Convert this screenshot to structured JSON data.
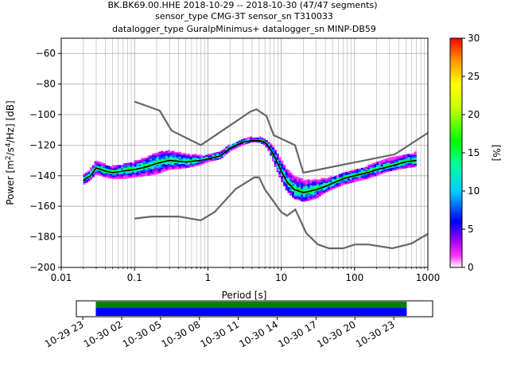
{
  "header": {
    "line1": "BK.BK69.00.HHE   2018-10-29 -- 2018-10-30  (47/47 segments)",
    "line2": "sensor_type CMG-3T sensor_sn T310033",
    "line3": "datalogger_type GuralpMinimus+ datalogger_sn MINP-DB59"
  },
  "colorbar": {
    "label": "[%]",
    "ticks": [
      "0",
      "5",
      "10",
      "15",
      "20",
      "25",
      "30"
    ],
    "range": [
      0,
      30
    ]
  },
  "timeline": {
    "tick_labels": [
      "10-29 23",
      "10-30 02",
      "10-30 05",
      "10-30 08",
      "10-30 11",
      "10-30 14",
      "10-30 17",
      "10-30 20",
      "10-30 23"
    ],
    "range_hours": [
      -1.5,
      26.0
    ],
    "data_span_hours": [
      0,
      24
    ],
    "colors": {
      "coverage": "#008000",
      "gaps_free": "#0000ff"
    }
  },
  "chart_data": {
    "type": "heatmap",
    "title": "BK.BK69.00.HHE   2018-10-29 -- 2018-10-30  (47/47 segments)",
    "xlabel": "Period [s]",
    "ylabel": "Power [m²/s⁴/Hz] [dB]",
    "xscale": "log",
    "xlim": [
      0.01,
      1000
    ],
    "ylim": [
      -200,
      -50
    ],
    "x_tick_labels": [
      "0.01",
      "0.1",
      "1",
      "10",
      "100",
      "1000"
    ],
    "y_ticks": [
      -60,
      -80,
      -100,
      -120,
      -140,
      -160,
      -180,
      -200
    ],
    "y_tick_labels": [
      "−60",
      "−80",
      "−100",
      "−120",
      "−140",
      "−160",
      "−180",
      "−200"
    ],
    "grid": true,
    "noise_models": {
      "color": "#666666",
      "high": {
        "x": [
          0.1,
          0.22,
          0.32,
          0.8,
          3.8,
          4.6,
          6.3,
          7.9,
          15.4,
          20,
          354.8,
          1000
        ],
        "y": [
          -91.5,
          -97.4,
          -110.5,
          -120,
          -98,
          -96.5,
          -101,
          -113.5,
          -120,
          -138,
          -126,
          -112
        ]
      },
      "low": {
        "x": [
          0.1,
          0.17,
          0.4,
          0.8,
          1.24,
          2.4,
          4.3,
          5,
          6,
          10,
          12,
          15.6,
          21.9,
          31.6,
          45,
          70,
          101,
          154,
          328,
          600,
          1000
        ],
        "y": [
          -168,
          -166.7,
          -166.7,
          -169.2,
          -163.7,
          -148.6,
          -141.1,
          -141.1,
          -149,
          -163.8,
          -166.2,
          -162.1,
          -177.5,
          -185,
          -187.5,
          -187.5,
          -185,
          -185,
          -187.5,
          -184.4,
          -178
        ]
      }
    },
    "series": [
      {
        "name": "",
        "color": "#000000",
        "x": [
          0.02,
          0.025,
          0.03,
          0.04,
          0.05,
          0.07,
          0.1,
          0.15,
          0.2,
          0.3,
          0.5,
          0.8,
          1,
          1.5,
          2,
          3,
          4,
          5,
          6,
          7,
          8,
          10,
          12,
          15,
          20,
          25,
          30,
          40,
          50,
          70,
          100,
          150,
          200,
          300,
          500,
          700
        ],
        "y": [
          -143,
          -140,
          -135,
          -137,
          -138,
          -137,
          -136,
          -134,
          -132,
          -130,
          -131,
          -130,
          -129,
          -127,
          -122,
          -118,
          -117,
          -117,
          -118,
          -122,
          -127,
          -137,
          -144,
          -149,
          -151,
          -150,
          -149,
          -147,
          -145,
          -142,
          -140,
          -138,
          -136,
          -134,
          -131,
          -130
        ]
      }
    ],
    "heatmap": {
      "colorbar_range": [
        0,
        30
      ],
      "band": {
        "x": [
          0.02,
          0.025,
          0.03,
          0.04,
          0.05,
          0.07,
          0.1,
          0.15,
          0.2,
          0.3,
          0.5,
          0.8,
          1,
          1.5,
          2,
          3,
          4,
          5,
          6,
          7,
          8,
          10,
          12,
          15,
          20,
          25,
          30,
          40,
          50,
          70,
          100,
          150,
          200,
          300,
          500,
          700
        ],
        "upper": [
          -140,
          -136,
          -130,
          -133,
          -134,
          -133,
          -131,
          -128,
          -125,
          -124,
          -126,
          -127,
          -127,
          -124,
          -120,
          -116,
          -115,
          -115,
          -116,
          -119,
          -122,
          -130,
          -136,
          -140,
          -143,
          -143,
          -143,
          -142,
          -141,
          -138,
          -136,
          -134,
          -131,
          -129,
          -126,
          -125
        ],
        "lower": [
          -146,
          -143,
          -139,
          -141,
          -142,
          -142,
          -141,
          -140,
          -139,
          -136,
          -135,
          -133,
          -131,
          -129,
          -124,
          -120,
          -118,
          -118,
          -120,
          -125,
          -132,
          -143,
          -150,
          -155,
          -157,
          -156,
          -155,
          -151,
          -149,
          -146,
          -144,
          -142,
          -140,
          -137,
          -135,
          -134
        ]
      }
    }
  }
}
